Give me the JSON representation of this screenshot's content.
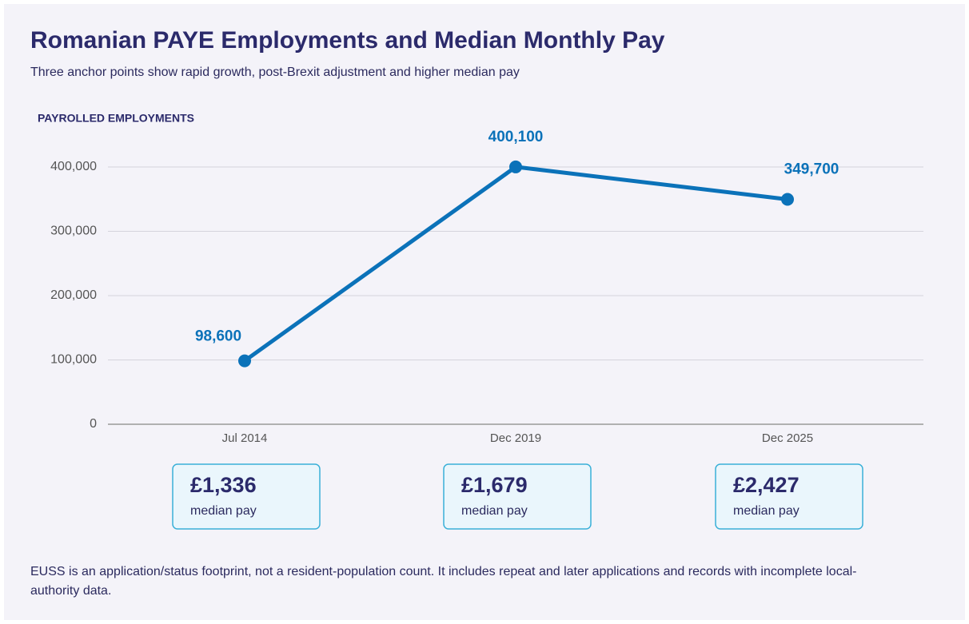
{
  "chart_data": {
    "type": "line",
    "title": "Romanian PAYE Employments and Median Monthly Pay",
    "subtitle": "Three anchor points show rapid growth, post-Brexit adjustment and higher median pay",
    "y_label": "PAYROLLED EMPLOYMENTS",
    "categories": [
      "Jul 2014",
      "Dec 2019",
      "Dec 2025"
    ],
    "series": [
      {
        "name": "Payrolled employments",
        "color": "#0b72b9",
        "values": [
          98600,
          400100,
          349700
        ],
        "value_labels": [
          "98,600",
          "400,100",
          "349,700"
        ]
      }
    ],
    "ylim": [
      0,
      400000
    ],
    "yticks": [
      0,
      {
        "value": 100000,
        "label": "100,000"
      },
      {
        "value": 200000,
        "label": "200,000"
      },
      {
        "value": 300000,
        "label": "300,000"
      },
      {
        "value": 400000,
        "label": "400,000"
      }
    ],
    "grid": true,
    "pay": {
      "label": "median pay",
      "values": [
        1336,
        1679,
        2427
      ],
      "value_labels": [
        "£1,336",
        "£1,679",
        "£2,427"
      ]
    },
    "footnote": "EUSS is an application/status footprint, not a resident-population count. It includes repeat and later applications and records with incomplete local-authority data."
  }
}
